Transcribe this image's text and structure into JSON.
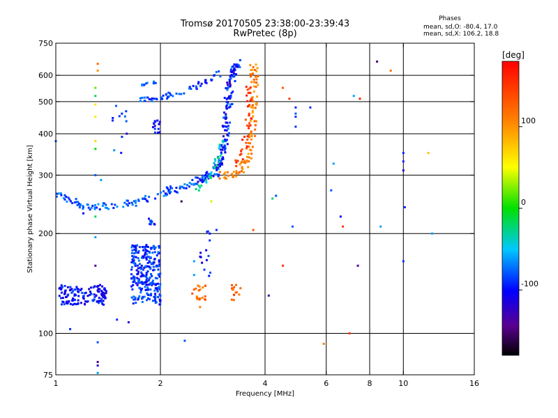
{
  "chart_data": {
    "type": "scatter",
    "title": "Tromsø 20170505 23:38:00-23:39:43",
    "subtitle": "RwPretec (8p)",
    "xlabel": "Frequency [MHz]",
    "ylabel": "Stationary phase Virtual Height [km]",
    "x_scale": "log",
    "y_scale": "log",
    "xlim": [
      1,
      16
    ],
    "ylim": [
      75,
      750
    ],
    "x_ticks": [
      1,
      2,
      4,
      6,
      8,
      10,
      16
    ],
    "x_tick_labels": [
      "1",
      "2",
      "4",
      "6",
      "8",
      "10",
      "16"
    ],
    "x_gridlines": [
      2,
      4,
      6,
      8,
      10
    ],
    "y_ticks": [
      75,
      100,
      200,
      300,
      400,
      500,
      600,
      750
    ],
    "y_tick_labels": [
      "75",
      "100",
      "200",
      "300",
      "400",
      "500",
      "600",
      "750"
    ],
    "y_gridlines": [
      100,
      200,
      300,
      400,
      500,
      600
    ],
    "grid": true,
    "stats": {
      "title": "Phases",
      "o_line": "mean, sd,O: -80.4, 17.0",
      "x_line": "mean, sd,X: 106.2, 18.8"
    },
    "colorbar": {
      "label": "[deg]",
      "range": [
        -180,
        180
      ],
      "ticks": [
        100,
        0,
        -100
      ],
      "tick_labels": [
        "100",
        "0",
        "-100"
      ]
    },
    "traces": [
      {
        "kind": "curve",
        "phase": -80,
        "points": [
          [
            1.0,
            262
          ],
          [
            1.1,
            250
          ],
          [
            1.2,
            243
          ],
          [
            1.35,
            241
          ],
          [
            1.5,
            242
          ],
          [
            1.7,
            249
          ],
          [
            1.9,
            258
          ],
          [
            2.1,
            268
          ],
          [
            2.3,
            276
          ],
          [
            2.5,
            285
          ],
          [
            2.7,
            293
          ],
          [
            2.85,
            305
          ],
          [
            2.95,
            325
          ],
          [
            3.05,
            365
          ],
          [
            3.1,
            420
          ],
          [
            3.15,
            500
          ],
          [
            3.2,
            560
          ],
          [
            3.25,
            620
          ],
          [
            3.35,
            655
          ]
        ],
        "spread": 0.05,
        "density": 12
      },
      {
        "kind": "curve",
        "phase": -110,
        "points": [
          [
            2.6,
            290
          ],
          [
            2.9,
            300
          ],
          [
            3.0,
            330
          ],
          [
            3.05,
            380
          ],
          [
            3.1,
            460
          ],
          [
            3.12,
            540
          ],
          [
            3.2,
            600
          ],
          [
            3.3,
            640
          ]
        ],
        "spread": 0.04,
        "density": 10
      },
      {
        "kind": "curve",
        "phase": -30,
        "points": [
          [
            2.55,
            272
          ],
          [
            2.7,
            285
          ],
          [
            2.85,
            310
          ],
          [
            2.95,
            345
          ],
          [
            3.0,
            380
          ]
        ],
        "spread": 0.03,
        "density": 6
      },
      {
        "kind": "curve",
        "phase": 110,
        "points": [
          [
            3.0,
            300
          ],
          [
            3.2,
            300
          ],
          [
            3.4,
            310
          ],
          [
            3.55,
            330
          ],
          [
            3.65,
            370
          ],
          [
            3.7,
            420
          ],
          [
            3.72,
            480
          ],
          [
            3.73,
            540
          ],
          [
            3.73,
            600
          ],
          [
            3.7,
            650
          ]
        ],
        "spread": 0.05,
        "density": 12
      },
      {
        "kind": "curve",
        "phase": 150,
        "points": [
          [
            3.3,
            320
          ],
          [
            3.45,
            350
          ],
          [
            3.55,
            400
          ],
          [
            3.6,
            460
          ],
          [
            3.6,
            520
          ],
          [
            3.55,
            560
          ]
        ],
        "spread": 0.04,
        "density": 8
      },
      {
        "kind": "curve",
        "phase": -85,
        "points": [
          [
            1.75,
            505
          ],
          [
            1.85,
            510
          ],
          [
            2.0,
            510
          ],
          [
            2.1,
            525
          ],
          [
            2.3,
            535
          ],
          [
            2.55,
            560
          ],
          [
            2.75,
            580
          ],
          [
            3.0,
            610
          ]
        ],
        "spread": 0.035,
        "density": 8
      },
      {
        "kind": "curve",
        "phase": -85,
        "points": [
          [
            1.75,
            560
          ],
          [
            1.85,
            572
          ],
          [
            2.0,
            572
          ]
        ],
        "spread": 0.015,
        "density": 6
      },
      {
        "kind": "curve",
        "phase": -95,
        "points": [
          [
            1.85,
            220
          ],
          [
            1.88,
            215
          ],
          [
            1.92,
            212
          ]
        ],
        "spread": 0.02,
        "density": 5
      },
      {
        "kind": "box",
        "phase": -90,
        "f": [
          1.65,
          2.0
        ],
        "h": [
          122,
          185
        ],
        "count": 260
      },
      {
        "kind": "box",
        "phase": -100,
        "f": [
          1.02,
          1.4
        ],
        "h": [
          122,
          140
        ],
        "count": 130
      },
      {
        "kind": "box",
        "phase": -100,
        "f": [
          1.9,
          2.0
        ],
        "h": [
          400,
          440
        ],
        "count": 14
      },
      {
        "kind": "box",
        "phase": 120,
        "f": [
          2.45,
          2.7
        ],
        "h": [
          125,
          140
        ],
        "count": 20
      },
      {
        "kind": "box",
        "phase": 130,
        "f": [
          3.2,
          3.4
        ],
        "h": [
          124,
          140
        ],
        "count": 12
      },
      {
        "kind": "box",
        "phase": -100,
        "f": [
          2.6,
          2.8
        ],
        "h": [
          140,
          205
        ],
        "count": 14
      },
      {
        "kind": "box",
        "phase": -80,
        "f": [
          1.45,
          1.6
        ],
        "h": [
          340,
          500
        ],
        "count": 10
      }
    ],
    "sparse_points": [
      [
        1.32,
        650,
        120
      ],
      [
        1.32,
        620,
        100
      ],
      [
        1.3,
        550,
        20
      ],
      [
        1.3,
        520,
        -20
      ],
      [
        1.3,
        490,
        60
      ],
      [
        1.3,
        450,
        60
      ],
      [
        1.3,
        380,
        70
      ],
      [
        1.3,
        360,
        0
      ],
      [
        1.3,
        300,
        -80
      ],
      [
        1.35,
        290,
        -60
      ],
      [
        1.3,
        225,
        -20
      ],
      [
        1.3,
        195,
        -60
      ],
      [
        1.3,
        160,
        -140
      ],
      [
        1.32,
        94,
        -80
      ],
      [
        1.32,
        82,
        -150
      ],
      [
        1.32,
        80,
        -120
      ],
      [
        1.32,
        76,
        -60
      ],
      [
        1.1,
        103,
        -90
      ],
      [
        1.0,
        380,
        -80
      ],
      [
        1.5,
        110,
        -90
      ],
      [
        1.62,
        108,
        -120
      ],
      [
        1.6,
        400,
        -120
      ],
      [
        1.55,
        460,
        -90
      ],
      [
        4.5,
        550,
        130
      ],
      [
        4.7,
        510,
        150
      ],
      [
        4.9,
        480,
        -90
      ],
      [
        5.4,
        480,
        -90
      ],
      [
        4.9,
        460,
        -80
      ],
      [
        4.9,
        420,
        -90
      ],
      [
        4.9,
        450,
        -90
      ],
      [
        6.3,
        325,
        -60
      ],
      [
        6.2,
        270,
        -80
      ],
      [
        6.6,
        225,
        -100
      ],
      [
        6.7,
        210,
        150
      ],
      [
        7.0,
        100,
        150
      ],
      [
        7.4,
        160,
        -140
      ],
      [
        7.5,
        510,
        160
      ],
      [
        7.2,
        520,
        -60
      ],
      [
        8.4,
        660,
        -150
      ],
      [
        9.2,
        620,
        120
      ],
      [
        10.0,
        350,
        -90
      ],
      [
        10.0,
        330,
        -90
      ],
      [
        10.0,
        310,
        -120
      ],
      [
        10.1,
        240,
        -90
      ],
      [
        10.0,
        165,
        -90
      ],
      [
        8.6,
        210,
        -60
      ],
      [
        11.8,
        350,
        80
      ],
      [
        12.1,
        200,
        -60
      ],
      [
        4.2,
        255,
        -20
      ],
      [
        4.3,
        260,
        -80
      ],
      [
        4.8,
        210,
        -80
      ],
      [
        5.9,
        93,
        110
      ],
      [
        4.5,
        160,
        150
      ],
      [
        4.1,
        130,
        -130
      ],
      [
        2.3,
        250,
        -160
      ],
      [
        2.35,
        95,
        -80
      ],
      [
        3.7,
        205,
        130
      ],
      [
        2.9,
        205,
        -90
      ],
      [
        2.8,
        250,
        40
      ],
      [
        2.5,
        165,
        -60
      ],
      [
        2.5,
        150,
        -60
      ],
      [
        3.3,
        140,
        120
      ],
      [
        2.6,
        120,
        110
      ],
      [
        1.2,
        240,
        -80
      ],
      [
        1.2,
        230,
        -100
      ]
    ]
  }
}
